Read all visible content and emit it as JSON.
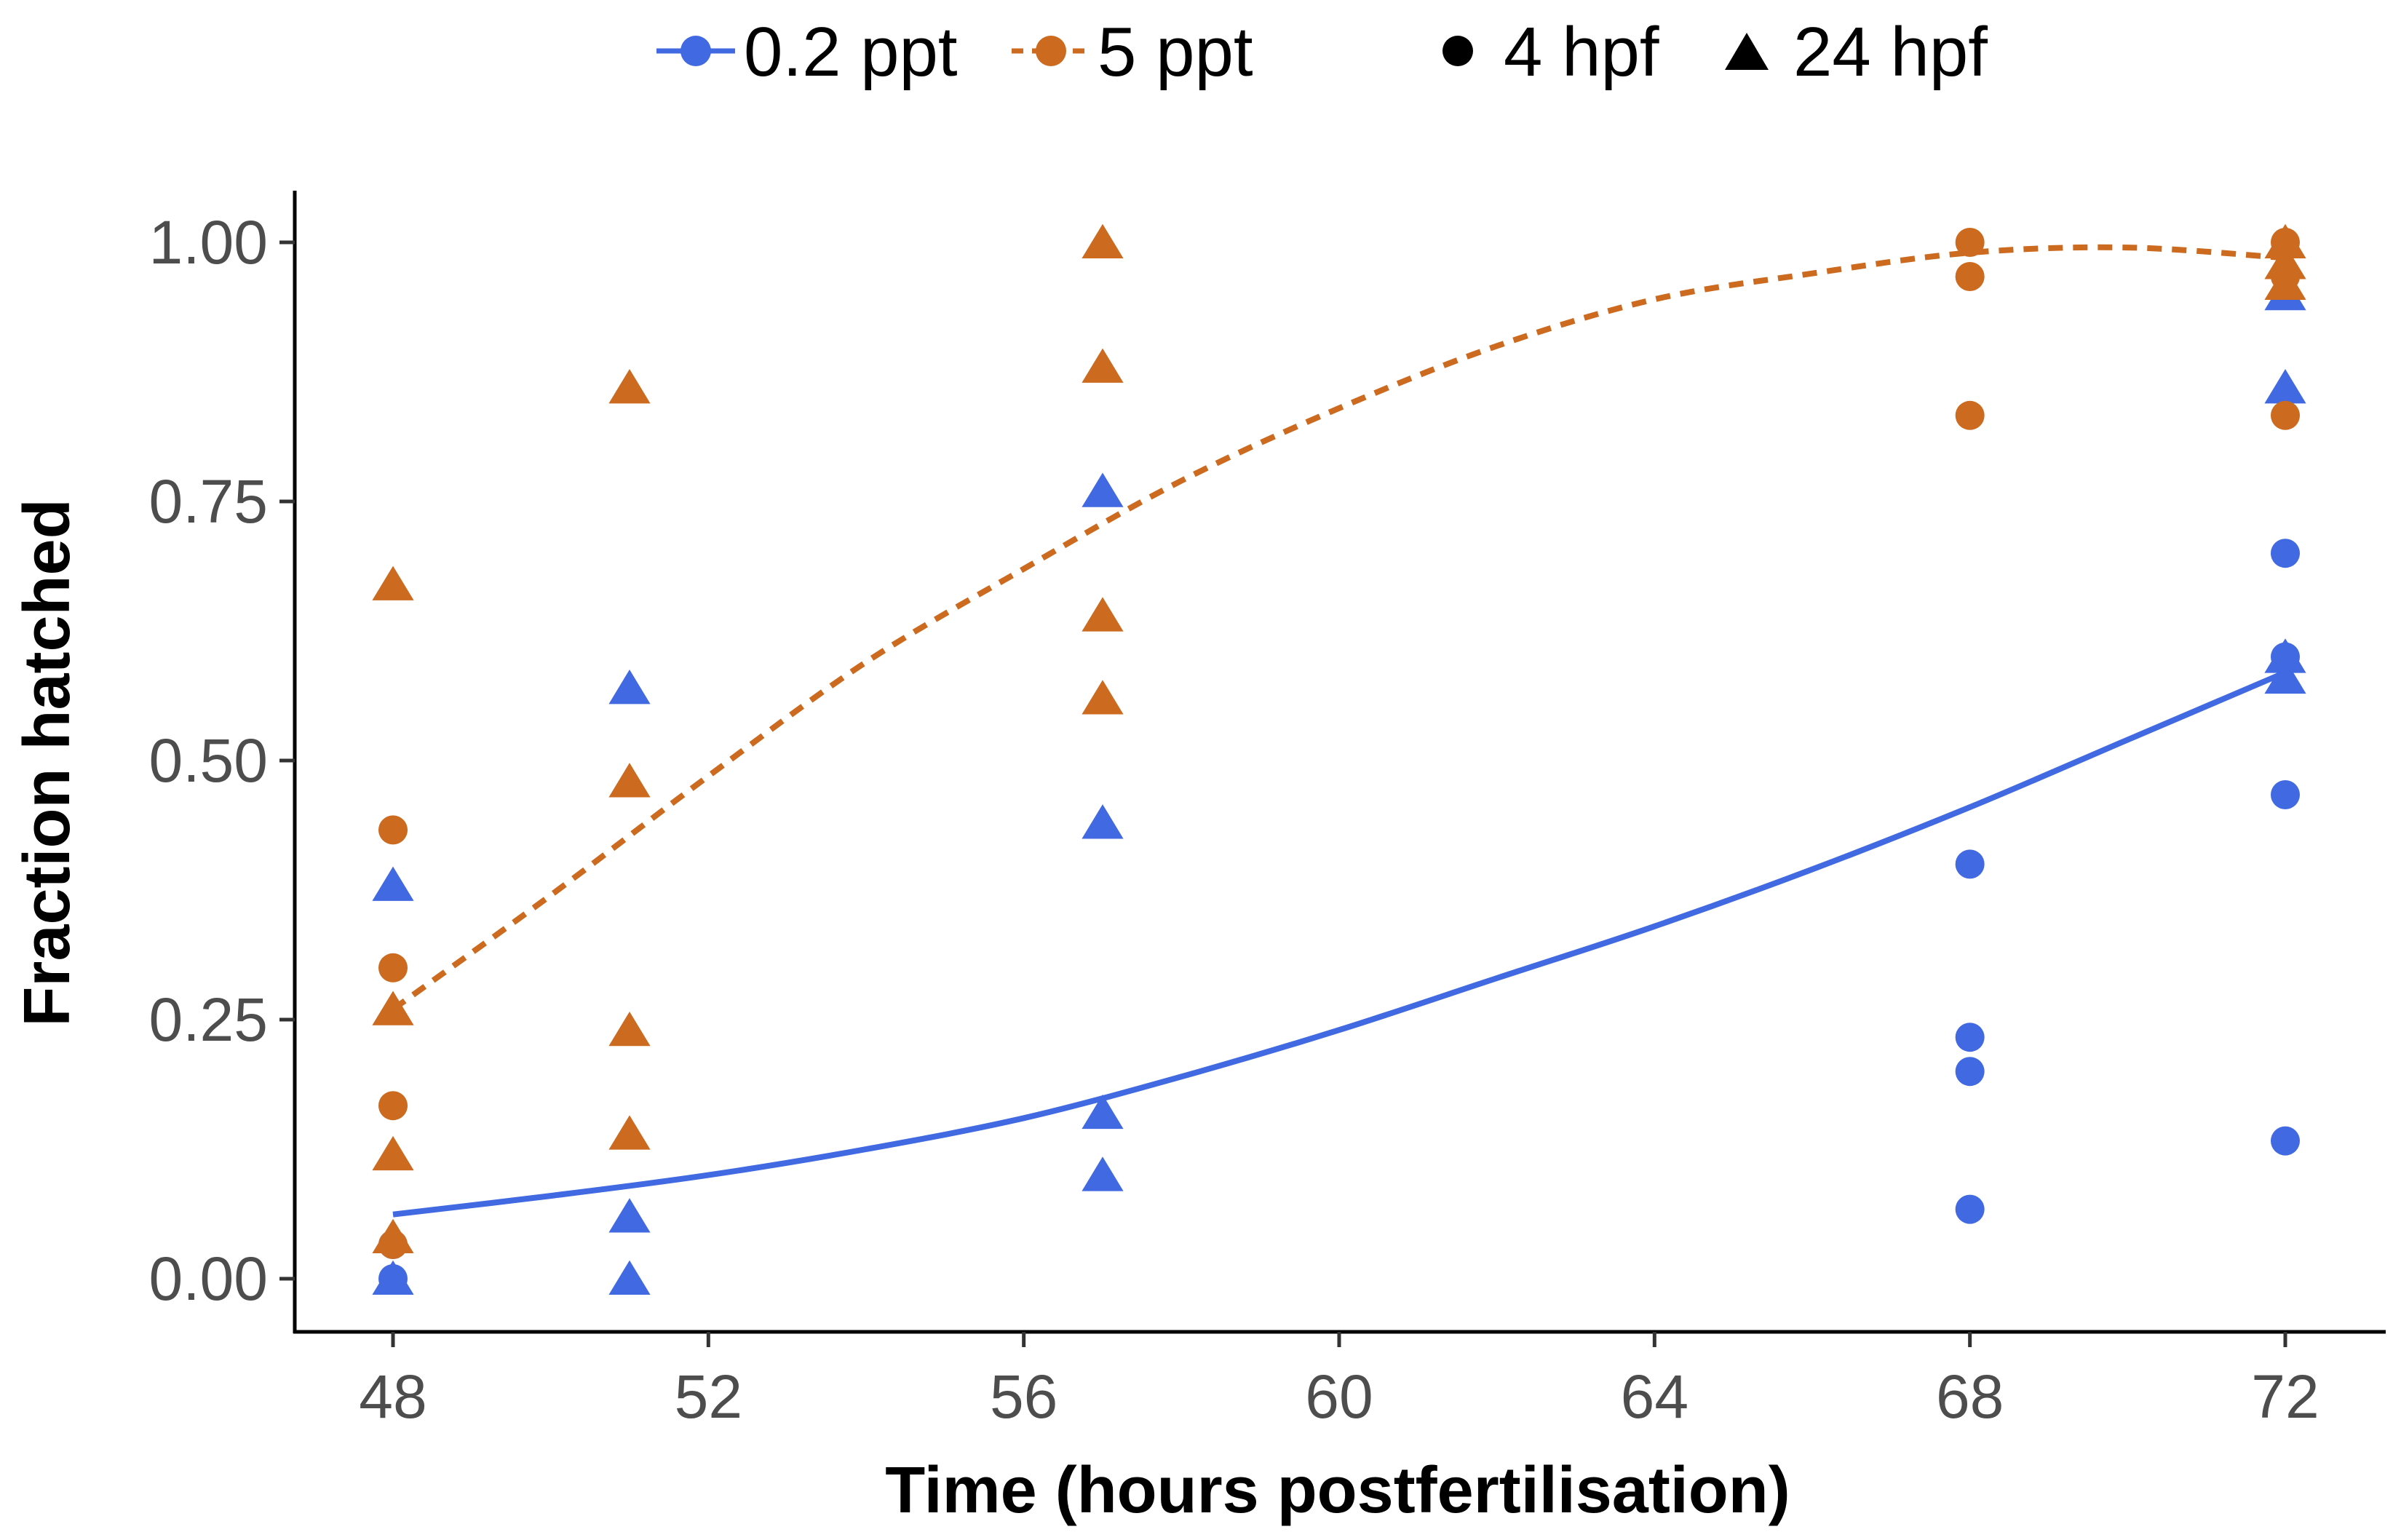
{
  "chart_data": {
    "type": "scatter",
    "title": "",
    "xlabel": "Time (hours postfertilisation)",
    "ylabel": "Fraction hatched",
    "xlim": [
      47,
      73
    ],
    "ylim": [
      -0.05,
      1.05
    ],
    "xticks": [
      48,
      52,
      56,
      60,
      64,
      68,
      72
    ],
    "yticks": [
      0.0,
      0.25,
      0.5,
      0.75,
      1.0
    ],
    "ytick_labels": [
      "0.00",
      "0.25",
      "0.50",
      "0.75",
      "1.00"
    ],
    "grid": false,
    "legend_position": "top",
    "legend": {
      "colour_entries": [
        {
          "label": "0.2 ppt",
          "color": "#4169e1",
          "line": "solid"
        },
        {
          "label": "5 ppt",
          "color": "#cc6a1f",
          "line": "dashed"
        }
      ],
      "shape_entries": [
        {
          "label": "4 hpf",
          "shape": "circle"
        },
        {
          "label": "24 hpf",
          "shape": "triangle"
        }
      ]
    },
    "series": [
      {
        "name": "0.2 ppt",
        "color": "#4169e1",
        "points": [
          {
            "x": 48,
            "y": 0.0,
            "shape": "circle"
          },
          {
            "x": 48,
            "y": 0.033,
            "shape": "circle"
          },
          {
            "x": 48,
            "y": 0.0,
            "shape": "triangle"
          },
          {
            "x": 48,
            "y": 0.38,
            "shape": "triangle"
          },
          {
            "x": 51,
            "y": 0.0,
            "shape": "triangle"
          },
          {
            "x": 51,
            "y": 0.06,
            "shape": "triangle"
          },
          {
            "x": 51,
            "y": 0.57,
            "shape": "triangle"
          },
          {
            "x": 57,
            "y": 0.1,
            "shape": "triangle"
          },
          {
            "x": 57,
            "y": 0.16,
            "shape": "triangle"
          },
          {
            "x": 57,
            "y": 0.44,
            "shape": "triangle"
          },
          {
            "x": 57,
            "y": 0.76,
            "shape": "triangle"
          },
          {
            "x": 68,
            "y": 0.067,
            "shape": "circle"
          },
          {
            "x": 68,
            "y": 0.2,
            "shape": "circle"
          },
          {
            "x": 68,
            "y": 0.233,
            "shape": "circle"
          },
          {
            "x": 68,
            "y": 0.4,
            "shape": "circle"
          },
          {
            "x": 72,
            "y": 0.133,
            "shape": "circle"
          },
          {
            "x": 72,
            "y": 0.467,
            "shape": "circle"
          },
          {
            "x": 72,
            "y": 0.6,
            "shape": "circle"
          },
          {
            "x": 72,
            "y": 0.7,
            "shape": "circle"
          },
          {
            "x": 72,
            "y": 0.58,
            "shape": "triangle"
          },
          {
            "x": 72,
            "y": 0.6,
            "shape": "triangle"
          },
          {
            "x": 72,
            "y": 0.86,
            "shape": "triangle"
          },
          {
            "x": 72,
            "y": 0.95,
            "shape": "triangle"
          }
        ],
        "fit": {
          "x": [
            48,
            50,
            52,
            54,
            56,
            58,
            60,
            62,
            64,
            66,
            68,
            70,
            72
          ],
          "y": [
            0.062,
            0.08,
            0.1,
            0.125,
            0.155,
            0.195,
            0.24,
            0.29,
            0.34,
            0.395,
            0.455,
            0.52,
            0.585
          ]
        }
      },
      {
        "name": "5 ppt",
        "color": "#cc6a1f",
        "points": [
          {
            "x": 48,
            "y": 0.033,
            "shape": "circle"
          },
          {
            "x": 48,
            "y": 0.167,
            "shape": "circle"
          },
          {
            "x": 48,
            "y": 0.3,
            "shape": "circle"
          },
          {
            "x": 48,
            "y": 0.433,
            "shape": "circle"
          },
          {
            "x": 48,
            "y": 0.04,
            "shape": "triangle"
          },
          {
            "x": 48,
            "y": 0.12,
            "shape": "triangle"
          },
          {
            "x": 48,
            "y": 0.26,
            "shape": "triangle"
          },
          {
            "x": 48,
            "y": 0.67,
            "shape": "triangle"
          },
          {
            "x": 51,
            "y": 0.14,
            "shape": "triangle"
          },
          {
            "x": 51,
            "y": 0.24,
            "shape": "triangle"
          },
          {
            "x": 51,
            "y": 0.48,
            "shape": "triangle"
          },
          {
            "x": 51,
            "y": 0.86,
            "shape": "triangle"
          },
          {
            "x": 57,
            "y": 0.56,
            "shape": "triangle"
          },
          {
            "x": 57,
            "y": 0.64,
            "shape": "triangle"
          },
          {
            "x": 57,
            "y": 0.88,
            "shape": "triangle"
          },
          {
            "x": 57,
            "y": 1.0,
            "shape": "triangle"
          },
          {
            "x": 68,
            "y": 0.833,
            "shape": "circle"
          },
          {
            "x": 68,
            "y": 0.967,
            "shape": "circle"
          },
          {
            "x": 68,
            "y": 1.0,
            "shape": "circle"
          },
          {
            "x": 72,
            "y": 0.833,
            "shape": "circle"
          },
          {
            "x": 72,
            "y": 0.967,
            "shape": "circle"
          },
          {
            "x": 72,
            "y": 1.0,
            "shape": "circle"
          },
          {
            "x": 72,
            "y": 0.96,
            "shape": "triangle"
          },
          {
            "x": 72,
            "y": 0.98,
            "shape": "triangle"
          },
          {
            "x": 72,
            "y": 1.0,
            "shape": "triangle"
          }
        ],
        "fit": {
          "x": [
            48,
            50,
            52,
            54,
            56,
            58,
            60,
            62,
            64,
            66,
            68,
            70,
            72
          ],
          "y": [
            0.26,
            0.37,
            0.485,
            0.595,
            0.685,
            0.77,
            0.84,
            0.9,
            0.945,
            0.97,
            0.99,
            0.995,
            0.985
          ]
        }
      }
    ]
  }
}
